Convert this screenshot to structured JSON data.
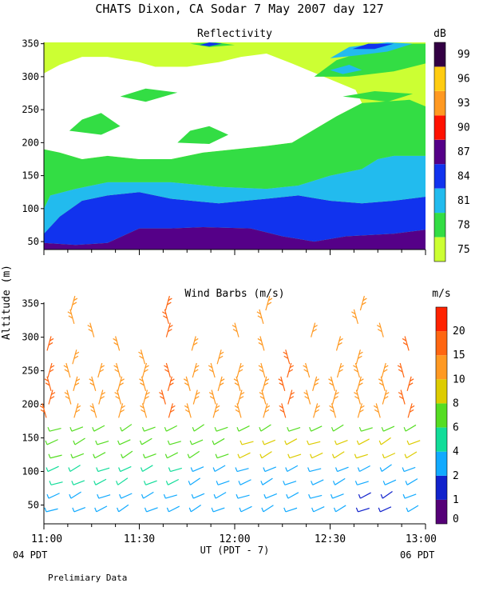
{
  "header": {
    "title": "CHATS Dixon, CA  Sodar   7 May 2007  day 127",
    "ylabel": "Altitude (m)",
    "xlabel": "UT  (PDT - 7)",
    "left_local": "04 PDT",
    "right_local": "06 PDT",
    "footnote": "Prelimiary Data"
  },
  "chart_data": [
    {
      "type": "heatmap",
      "title": "Reflectivity",
      "colorbar_unit": "dB",
      "ylim": [
        38,
        352
      ],
      "xlim": [
        660,
        780
      ],
      "yticks": [
        50,
        100,
        150,
        200,
        250,
        300,
        350
      ],
      "colorbar": {
        "levels": [
          "75",
          "78",
          "81",
          "84",
          "87",
          "90",
          "93",
          "96",
          "99"
        ],
        "colors": [
          "#ccff33",
          "#33dd44",
          "#22bbee",
          "#1133ee",
          "#550088",
          "#ff1100",
          "#ff9922",
          "#ffcc11",
          "#330044"
        ]
      },
      "contours": [
        {
          "level": "87",
          "color": "#550088",
          "points": [
            [
              660,
              38
            ],
            [
              780,
              38
            ],
            [
              780,
              68
            ],
            [
              770,
              62
            ],
            [
              755,
              58
            ],
            [
              745,
              50
            ],
            [
              735,
              58
            ],
            [
              725,
              70
            ],
            [
              710,
              72
            ],
            [
              700,
              70
            ],
            [
              690,
              70
            ],
            [
              680,
              48
            ],
            [
              670,
              45
            ],
            [
              660,
              48
            ]
          ]
        },
        {
          "level": "84",
          "color": "#1133ee",
          "points": [
            [
              660,
              48
            ],
            [
              670,
              45
            ],
            [
              680,
              48
            ],
            [
              690,
              70
            ],
            [
              700,
              70
            ],
            [
              710,
              72
            ],
            [
              725,
              70
            ],
            [
              735,
              58
            ],
            [
              745,
              50
            ],
            [
              755,
              58
            ],
            [
              770,
              62
            ],
            [
              780,
              68
            ],
            [
              780,
              118
            ],
            [
              770,
              112
            ],
            [
              760,
              108
            ],
            [
              750,
              112
            ],
            [
              740,
              120
            ],
            [
              730,
              115
            ],
            [
              715,
              108
            ],
            [
              700,
              115
            ],
            [
              690,
              125
            ],
            [
              680,
              120
            ],
            [
              672,
              112
            ],
            [
              665,
              88
            ],
            [
              660,
              62
            ]
          ]
        },
        {
          "level": "81",
          "color": "#22bbee",
          "points": [
            [
              660,
              62
            ],
            [
              665,
              88
            ],
            [
              672,
              112
            ],
            [
              680,
              120
            ],
            [
              690,
              125
            ],
            [
              700,
              115
            ],
            [
              715,
              108
            ],
            [
              730,
              115
            ],
            [
              740,
              120
            ],
            [
              750,
              112
            ],
            [
              760,
              108
            ],
            [
              770,
              112
            ],
            [
              780,
              118
            ],
            [
              780,
              180
            ],
            [
              770,
              180
            ],
            [
              765,
              175
            ],
            [
              760,
              160
            ],
            [
              750,
              150
            ],
            [
              740,
              135
            ],
            [
              730,
              130
            ],
            [
              715,
              133
            ],
            [
              700,
              140
            ],
            [
              690,
              140
            ],
            [
              680,
              140
            ],
            [
              670,
              130
            ],
            [
              662,
              120
            ],
            [
              660,
              100
            ]
          ]
        }
      ],
      "green_band": [
        [
          660,
          100
        ],
        [
          662,
          120
        ],
        [
          670,
          130
        ],
        [
          680,
          140
        ],
        [
          690,
          140
        ],
        [
          700,
          140
        ],
        [
          715,
          133
        ],
        [
          730,
          130
        ],
        [
          740,
          135
        ],
        [
          750,
          150
        ],
        [
          760,
          160
        ],
        [
          765,
          175
        ],
        [
          770,
          180
        ],
        [
          780,
          180
        ],
        [
          780,
          255
        ],
        [
          775,
          265
        ],
        [
          760,
          260
        ],
        [
          752,
          240
        ],
        [
          745,
          220
        ],
        [
          738,
          200
        ],
        [
          730,
          195
        ],
        [
          720,
          190
        ],
        [
          710,
          185
        ],
        [
          700,
          175
        ],
        [
          690,
          175
        ],
        [
          680,
          180
        ],
        [
          672,
          175
        ],
        [
          665,
          185
        ],
        [
          660,
          190
        ]
      ],
      "white_region": [
        [
          660,
          190
        ],
        [
          665,
          185
        ],
        [
          672,
          175
        ],
        [
          680,
          180
        ],
        [
          690,
          175
        ],
        [
          700,
          175
        ],
        [
          710,
          185
        ],
        [
          720,
          190
        ],
        [
          730,
          195
        ],
        [
          738,
          200
        ],
        [
          745,
          220
        ],
        [
          752,
          240
        ],
        [
          760,
          260
        ],
        [
          758,
          280
        ],
        [
          748,
          300
        ],
        [
          738,
          320
        ],
        [
          730,
          335
        ],
        [
          722,
          330
        ],
        [
          715,
          322
        ],
        [
          705,
          315
        ],
        [
          695,
          315
        ],
        [
          690,
          322
        ],
        [
          680,
          330
        ],
        [
          672,
          330
        ],
        [
          665,
          318
        ],
        [
          660,
          305
        ]
      ],
      "patches": [
        {
          "color": "#33dd44",
          "points": [
            [
              668,
              218
            ],
            [
              672,
              235
            ],
            [
              678,
              245
            ],
            [
              684,
              225
            ],
            [
              678,
              212
            ]
          ]
        },
        {
          "color": "#33dd44",
          "points": [
            [
              702,
              200
            ],
            [
              706,
              218
            ],
            [
              712,
              225
            ],
            [
              718,
              212
            ],
            [
              712,
              198
            ]
          ]
        },
        {
          "color": "#33dd44",
          "points": [
            [
              684,
              270
            ],
            [
              692,
              282
            ],
            [
              702,
              276
            ],
            [
              692,
              262
            ]
          ]
        },
        {
          "color": "#33dd44",
          "points": [
            [
              754,
              270
            ],
            [
              764,
              278
            ],
            [
              776,
              274
            ],
            [
              768,
              262
            ]
          ]
        },
        {
          "color": "#33dd44",
          "points": [
            [
              745,
              300
            ],
            [
              752,
              325
            ],
            [
              762,
              340
            ],
            [
              776,
              350
            ],
            [
              780,
              350
            ],
            [
              780,
              320
            ],
            [
              770,
              308
            ],
            [
              756,
              300
            ]
          ]
        },
        {
          "color": "#33dd44",
          "points": [
            [
              706,
              350
            ],
            [
              712,
              345
            ],
            [
              720,
              348
            ],
            [
              714,
              352
            ]
          ]
        },
        {
          "color": "#22bbee",
          "points": [
            [
              750,
              328
            ],
            [
              756,
              345
            ],
            [
              768,
              352
            ],
            [
              776,
              350
            ],
            [
              768,
              338
            ],
            [
              758,
              332
            ]
          ]
        },
        {
          "color": "#1133ee",
          "points": [
            [
              757,
              342
            ],
            [
              762,
              350
            ],
            [
              770,
              350
            ],
            [
              764,
              342
            ]
          ]
        },
        {
          "color": "#1133ee",
          "points": [
            [
              709,
              348
            ],
            [
              712,
              352
            ],
            [
              716,
              350
            ],
            [
              712,
              346
            ]
          ]
        },
        {
          "color": "#22bbee",
          "points": [
            [
              750,
              310
            ],
            [
              756,
              318
            ],
            [
              760,
              310
            ],
            [
              754,
              304
            ]
          ]
        }
      ]
    },
    {
      "type": "scatter",
      "title": "Wind Barbs (m/s)",
      "colorbar_unit": "m/s",
      "ylim": [
        22,
        352
      ],
      "xlim": [
        660,
        780
      ],
      "xticks": [
        "11:00",
        "11:30",
        "12:00",
        "12:30",
        "13:00"
      ],
      "xtick_values": [
        660,
        690,
        720,
        750,
        780
      ],
      "yticks": [
        50,
        100,
        150,
        200,
        250,
        300,
        350
      ],
      "colorbar": {
        "levels": [
          "0",
          "1",
          "2",
          "4",
          "6",
          "8",
          "10",
          "15",
          "20"
        ],
        "colors": [
          "#550077",
          "#1122cc",
          "#11aaff",
          "#11dd99",
          "#55dd22",
          "#ddcc00",
          "#ff9922",
          "#ff6611",
          "#ff2200"
        ]
      },
      "barb_times": [
        660,
        667.5,
        675,
        682.5,
        690,
        697.5,
        705,
        712.5,
        720,
        727.5,
        735,
        742.5,
        750,
        757.5,
        765,
        772.5
      ],
      "barb_heights": [
        40,
        60,
        80,
        100,
        120,
        140,
        160,
        180,
        200,
        220,
        240,
        260,
        280,
        300,
        320,
        340
      ]
    }
  ]
}
